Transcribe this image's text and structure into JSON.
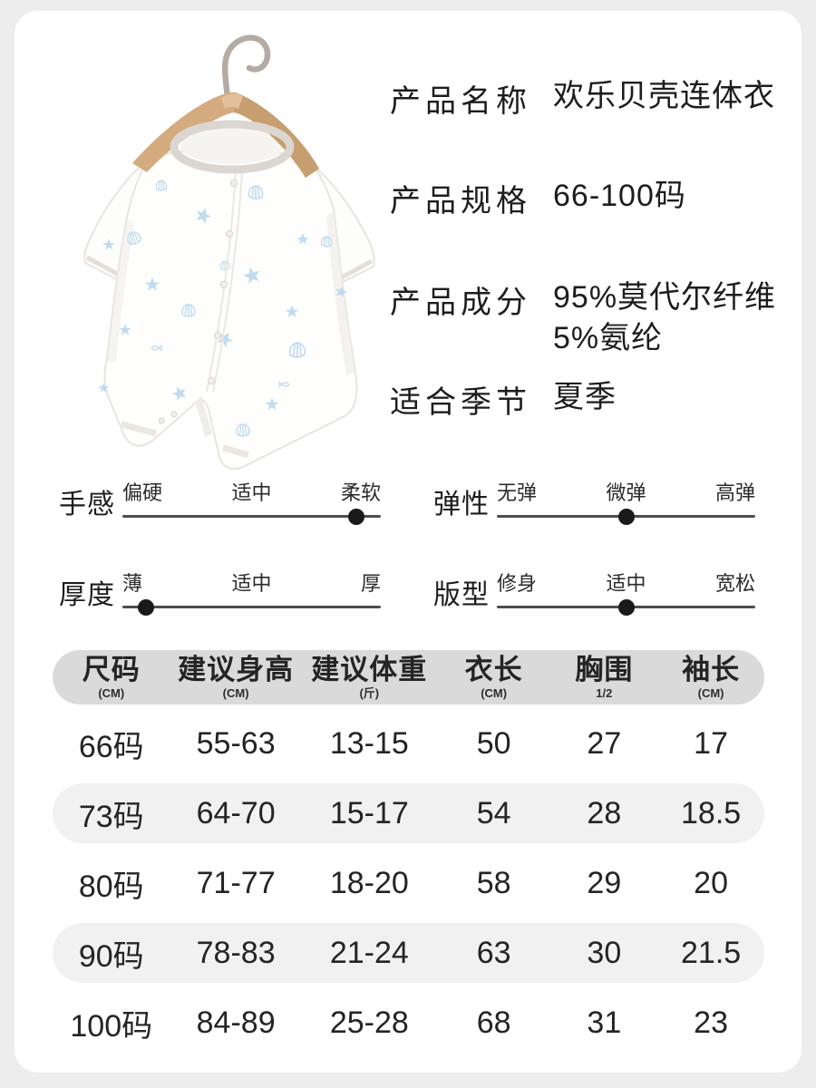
{
  "colors": {
    "page_bg": "#ededed",
    "card_bg": "#ffffff",
    "text": "#1d1d1d",
    "table_header_bg": "#dadada",
    "table_alt_row_bg": "#f1f1f1",
    "slider_line": "#4d4d4d",
    "slider_dot": "#1a1a1a",
    "pattern_blue": "#b7d5ee",
    "hanger_wood": "#d2a87c",
    "hanger_hook_metal": "#b4aca4"
  },
  "product_info": {
    "rows": [
      {
        "label": "产品名称",
        "value": "欢乐贝壳连体衣"
      },
      {
        "label": "产品规格",
        "value": "66-100码"
      },
      {
        "label": "产品成分",
        "value": "95%莫代尔纤维\n5%氨纶"
      },
      {
        "label": "适合季节",
        "value": "夏季"
      }
    ]
  },
  "attributes": {
    "dot_positions_pct": [
      9,
      50,
      90.5
    ],
    "items": [
      {
        "name": "手感",
        "options": [
          "偏硬",
          "适中",
          "柔软"
        ],
        "selected": 2
      },
      {
        "name": "弹性",
        "options": [
          "无弹",
          "微弹",
          "高弹"
        ],
        "selected": 1
      },
      {
        "name": "厚度",
        "options": [
          "薄",
          "适中",
          "厚"
        ],
        "selected": 0
      },
      {
        "name": "版型",
        "options": [
          "修身",
          "适中",
          "宽松"
        ],
        "selected": 1
      }
    ]
  },
  "size_table": {
    "columns": [
      {
        "label": "尺码",
        "unit": "(CM)"
      },
      {
        "label": "建议身高",
        "unit": "(CM)"
      },
      {
        "label": "建议体重",
        "unit": "(斤)"
      },
      {
        "label": "衣长",
        "unit": "(CM)"
      },
      {
        "label": "胸围",
        "unit": "1/2"
      },
      {
        "label": "袖长",
        "unit": "(CM)"
      }
    ],
    "rows": [
      [
        "66码",
        "55-63",
        "13-15",
        "50",
        "27",
        "17"
      ],
      [
        "73码",
        "64-70",
        "15-17",
        "54",
        "28",
        "18.5"
      ],
      [
        "80码",
        "71-77",
        "18-20",
        "58",
        "29",
        "20"
      ],
      [
        "90码",
        "78-83",
        "21-24",
        "63",
        "30",
        "21.5"
      ],
      [
        "100码",
        "84-89",
        "25-28",
        "68",
        "31",
        "23"
      ]
    ]
  }
}
